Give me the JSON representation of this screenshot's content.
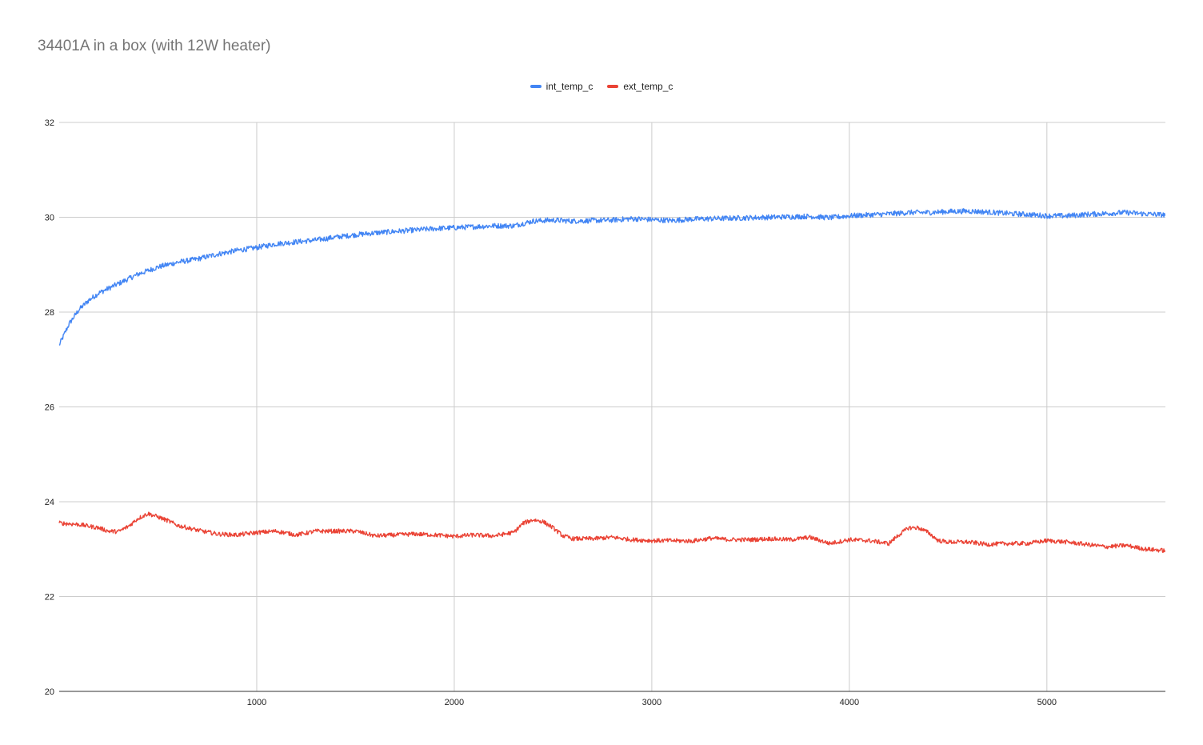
{
  "chart_data": {
    "type": "line",
    "title": "34401A in a box (with 12W heater)",
    "xlabel": "",
    "ylabel": "",
    "xlim": [
      0,
      5600
    ],
    "ylim": [
      20,
      32
    ],
    "x_ticks": [
      "1000",
      "2000",
      "3000",
      "4000",
      "5000"
    ],
    "x_tick_values": [
      1000,
      2000,
      3000,
      4000,
      5000
    ],
    "y_ticks": [
      "20",
      "22",
      "24",
      "26",
      "28",
      "30",
      "32"
    ],
    "y_tick_values": [
      20,
      22,
      24,
      26,
      28,
      30,
      32
    ],
    "grid": true,
    "legend_position": "top",
    "series": [
      {
        "name": "int_temp_c",
        "color": "#4285f4",
        "points": [
          [
            0,
            27.3
          ],
          [
            50,
            27.75
          ],
          [
            100,
            28.05
          ],
          [
            150,
            28.25
          ],
          [
            200,
            28.4
          ],
          [
            300,
            28.6
          ],
          [
            400,
            28.8
          ],
          [
            500,
            28.95
          ],
          [
            600,
            29.05
          ],
          [
            700,
            29.12
          ],
          [
            800,
            29.22
          ],
          [
            900,
            29.3
          ],
          [
            1000,
            29.36
          ],
          [
            1100,
            29.44
          ],
          [
            1200,
            29.48
          ],
          [
            1300,
            29.52
          ],
          [
            1400,
            29.58
          ],
          [
            1500,
            29.63
          ],
          [
            1600,
            29.67
          ],
          [
            1700,
            29.7
          ],
          [
            1800,
            29.73
          ],
          [
            1900,
            29.76
          ],
          [
            2000,
            29.78
          ],
          [
            2100,
            29.8
          ],
          [
            2200,
            29.82
          ],
          [
            2300,
            29.82
          ],
          [
            2400,
            29.92
          ],
          [
            2500,
            29.94
          ],
          [
            2600,
            29.92
          ],
          [
            2700,
            29.93
          ],
          [
            2800,
            29.94
          ],
          [
            2900,
            29.97
          ],
          [
            3000,
            29.95
          ],
          [
            3100,
            29.93
          ],
          [
            3200,
            29.96
          ],
          [
            3300,
            29.97
          ],
          [
            3400,
            29.98
          ],
          [
            3500,
            29.99
          ],
          [
            3600,
            30.0
          ],
          [
            3700,
            30.01
          ],
          [
            3800,
            30.02
          ],
          [
            3900,
            29.99
          ],
          [
            4000,
            30.03
          ],
          [
            4100,
            30.05
          ],
          [
            4200,
            30.07
          ],
          [
            4300,
            30.1
          ],
          [
            4400,
            30.1
          ],
          [
            4500,
            30.12
          ],
          [
            4600,
            30.13
          ],
          [
            4700,
            30.11
          ],
          [
            4800,
            30.08
          ],
          [
            4900,
            30.06
          ],
          [
            5000,
            30.03
          ],
          [
            5100,
            30.03
          ],
          [
            5200,
            30.06
          ],
          [
            5300,
            30.08
          ],
          [
            5400,
            30.1
          ],
          [
            5500,
            30.07
          ],
          [
            5600,
            30.05
          ]
        ],
        "noise": 0.055
      },
      {
        "name": "ext_temp_c",
        "color": "#ea4335",
        "points": [
          [
            0,
            23.55
          ],
          [
            100,
            23.52
          ],
          [
            200,
            23.45
          ],
          [
            250,
            23.38
          ],
          [
            300,
            23.37
          ],
          [
            350,
            23.48
          ],
          [
            400,
            23.65
          ],
          [
            450,
            23.75
          ],
          [
            500,
            23.68
          ],
          [
            550,
            23.6
          ],
          [
            600,
            23.5
          ],
          [
            700,
            23.4
          ],
          [
            800,
            23.32
          ],
          [
            900,
            23.3
          ],
          [
            1000,
            23.35
          ],
          [
            1100,
            23.38
          ],
          [
            1200,
            23.3
          ],
          [
            1300,
            23.38
          ],
          [
            1400,
            23.38
          ],
          [
            1500,
            23.38
          ],
          [
            1600,
            23.28
          ],
          [
            1700,
            23.3
          ],
          [
            1800,
            23.32
          ],
          [
            1900,
            23.3
          ],
          [
            2000,
            23.27
          ],
          [
            2100,
            23.3
          ],
          [
            2200,
            23.28
          ],
          [
            2300,
            23.35
          ],
          [
            2350,
            23.55
          ],
          [
            2400,
            23.62
          ],
          [
            2450,
            23.58
          ],
          [
            2500,
            23.45
          ],
          [
            2550,
            23.28
          ],
          [
            2600,
            23.22
          ],
          [
            2700,
            23.22
          ],
          [
            2800,
            23.25
          ],
          [
            2900,
            23.2
          ],
          [
            3000,
            23.18
          ],
          [
            3100,
            23.18
          ],
          [
            3200,
            23.17
          ],
          [
            3300,
            23.23
          ],
          [
            3400,
            23.2
          ],
          [
            3500,
            23.2
          ],
          [
            3600,
            23.22
          ],
          [
            3700,
            23.2
          ],
          [
            3800,
            23.25
          ],
          [
            3900,
            23.12
          ],
          [
            4000,
            23.2
          ],
          [
            4100,
            23.18
          ],
          [
            4200,
            23.12
          ],
          [
            4250,
            23.3
          ],
          [
            4300,
            23.45
          ],
          [
            4350,
            23.45
          ],
          [
            4400,
            23.35
          ],
          [
            4450,
            23.18
          ],
          [
            4500,
            23.15
          ],
          [
            4600,
            23.15
          ],
          [
            4700,
            23.1
          ],
          [
            4800,
            23.12
          ],
          [
            4900,
            23.12
          ],
          [
            5000,
            23.18
          ],
          [
            5100,
            23.15
          ],
          [
            5200,
            23.1
          ],
          [
            5300,
            23.05
          ],
          [
            5400,
            23.08
          ],
          [
            5500,
            23.0
          ],
          [
            5600,
            22.97
          ]
        ],
        "noise": 0.045
      }
    ]
  }
}
